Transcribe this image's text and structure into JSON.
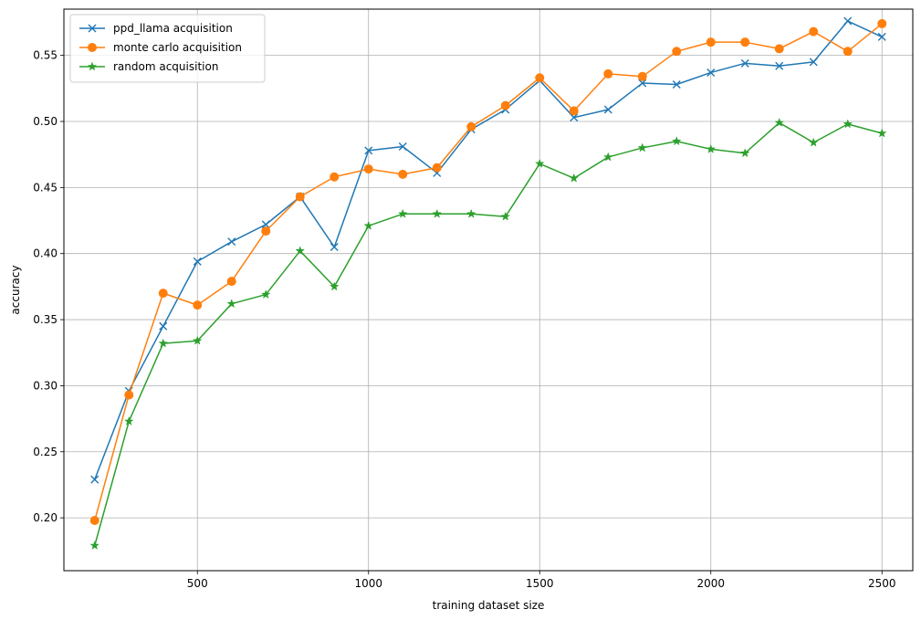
{
  "chart_data": {
    "type": "line",
    "title": "",
    "xlabel": "training dataset size",
    "ylabel": "accuracy",
    "xlim": [
      110,
      2590
    ],
    "ylim": [
      0.16,
      0.585
    ],
    "xticks": [
      500,
      1000,
      1500,
      2000,
      2500
    ],
    "xtick_labels": [
      "500",
      "1000",
      "1500",
      "2000",
      "2500"
    ],
    "yticks": [
      0.2,
      0.25,
      0.3,
      0.35,
      0.4,
      0.45,
      0.5,
      0.55
    ],
    "ytick_labels": [
      "0.20",
      "0.25",
      "0.30",
      "0.35",
      "0.40",
      "0.45",
      "0.50",
      "0.55"
    ],
    "grid": true,
    "legend_position": "top-left",
    "x": [
      200,
      300,
      400,
      500,
      600,
      700,
      800,
      900,
      1000,
      1100,
      1200,
      1300,
      1400,
      1500,
      1600,
      1700,
      1800,
      1900,
      2000,
      2100,
      2200,
      2300,
      2400,
      2500
    ],
    "series": [
      {
        "name": "ppd_llama acquisition",
        "color": "#1f77b4",
        "marker": "x",
        "values": [
          0.229,
          0.296,
          0.345,
          0.394,
          0.409,
          0.422,
          0.443,
          0.405,
          0.478,
          0.481,
          0.461,
          0.494,
          0.509,
          0.531,
          0.503,
          0.509,
          0.529,
          0.528,
          0.537,
          0.544,
          0.542,
          0.545,
          0.576,
          0.564
        ]
      },
      {
        "name": "monte carlo acquisition",
        "color": "#ff7f0e",
        "marker": "o",
        "values": [
          0.198,
          0.293,
          0.37,
          0.361,
          0.379,
          0.417,
          0.443,
          0.458,
          0.464,
          0.46,
          0.465,
          0.496,
          0.512,
          0.533,
          0.508,
          0.536,
          0.534,
          0.553,
          0.56,
          0.56,
          0.555,
          0.568,
          0.553,
          0.574
        ]
      },
      {
        "name": "random acquisition",
        "color": "#2ca02c",
        "marker": "*",
        "values": [
          0.179,
          0.273,
          0.332,
          0.334,
          0.362,
          0.369,
          0.402,
          0.375,
          0.421,
          0.43,
          0.43,
          0.43,
          0.428,
          0.468,
          0.457,
          0.473,
          0.48,
          0.485,
          0.479,
          0.476,
          0.499,
          0.484,
          0.498,
          0.491
        ]
      }
    ]
  }
}
